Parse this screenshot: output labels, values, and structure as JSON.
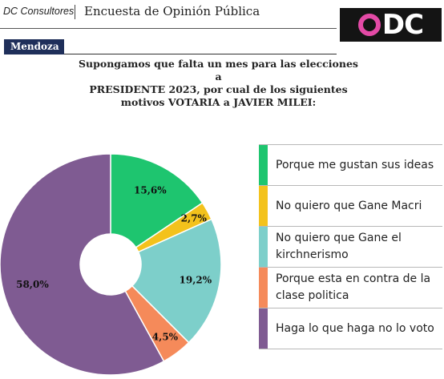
{
  "header": {
    "brand": "DC Consultores",
    "survey_title": "Encuesta de Opinión Pública",
    "logo_text": "DC",
    "logo_ring_color": "#e34aa6"
  },
  "region": "Mendoza",
  "question_lines": [
    "Supongamos que falta un mes para las elecciones a",
    "PRESIDENTE 2023, por cual de los siguientes",
    "motivos VOTARIA a JAVIER MILEI:"
  ],
  "chart_data": {
    "type": "pie",
    "donut": true,
    "start": "top, clockwise",
    "categories": [
      "Porque me gustan sus ideas",
      "No quiero que Gane Macri",
      "No quiero que Gane el kirchnerismo",
      "Porque esta en contra de la clase politica",
      "Haga lo que haga no lo voto"
    ],
    "values": [
      15.6,
      2.7,
      19.2,
      4.5,
      58.0
    ],
    "labels": [
      "15,6%",
      "2,7%",
      "19,2%",
      "4,5%",
      "58,0%"
    ],
    "colors": [
      "#1ec56f",
      "#f3c21c",
      "#7dcfca",
      "#f58a5a",
      "#7f5b92"
    ],
    "legend_position": "right"
  }
}
